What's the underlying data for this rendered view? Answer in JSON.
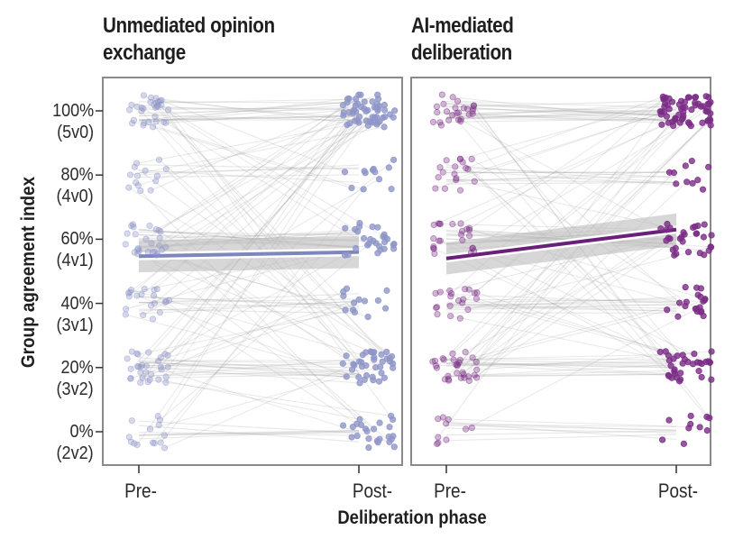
{
  "chart_data": [
    {
      "type": "line",
      "subtype": "paired-slope-with-jittered-points",
      "title": "Unmediated opinion exchange",
      "xlabel": "Deliberation phase",
      "ylabel": "Group agreement index",
      "x_categories": [
        "Pre-",
        "Post-"
      ],
      "y_ticks": [
        {
          "value": 100,
          "label": "100%\n(5v0)"
        },
        {
          "value": 80,
          "label": "80%\n(4v0)"
        },
        {
          "value": 60,
          "label": "60%\n(4v1)"
        },
        {
          "value": 40,
          "label": "40%\n(3v1)"
        },
        {
          "value": 20,
          "label": "20%\n(3v2)"
        },
        {
          "value": 0,
          "label": "0%\n(2v2)"
        }
      ],
      "ylim": [
        -10,
        110
      ],
      "grid": false,
      "point_color": "#8e96c8",
      "regression_color": "#7d86bd",
      "ci_color": "#bdbdbd",
      "regression": {
        "pre": 54.7,
        "post": 56.0,
        "ci_halfwidth": 5
      },
      "approx_point_counts": {
        "pre": {
          "100": 30,
          "80": 14,
          "60": 26,
          "40": 20,
          "20": 30,
          "0": 14
        },
        "post": {
          "100": 55,
          "80": 12,
          "60": 28,
          "40": 13,
          "20": 38,
          "0": 24
        }
      }
    },
    {
      "type": "line",
      "subtype": "paired-slope-with-jittered-points",
      "title": "AI-mediated deliberation",
      "xlabel": "Deliberation phase",
      "ylabel": "Group agreement index",
      "x_categories": [
        "Pre-",
        "Post-"
      ],
      "y_ticks": [
        {
          "value": 100,
          "label": "100%\n(5v0)"
        },
        {
          "value": 80,
          "label": "80%\n(4v0)"
        },
        {
          "value": 60,
          "label": "60%\n(4v1)"
        },
        {
          "value": 40,
          "label": "40%\n(3v1)"
        },
        {
          "value": 20,
          "label": "20%\n(3v2)"
        },
        {
          "value": 0,
          "label": "0%\n(2v2)"
        }
      ],
      "ylim": [
        -10,
        110
      ],
      "grid": false,
      "point_color": "#7b2d86",
      "regression_color": "#6a1f78",
      "ci_color": "#bdbdbd",
      "regression": {
        "pre": 54.0,
        "post": 63.0,
        "ci_halfwidth": 5
      },
      "approx_point_counts": {
        "pre": {
          "100": 26,
          "80": 18,
          "60": 24,
          "40": 20,
          "20": 30,
          "0": 10
        },
        "post": {
          "100": 62,
          "80": 10,
          "60": 30,
          "40": 20,
          "20": 34,
          "0": 10
        }
      }
    }
  ],
  "labels": {
    "title_left": "Unmediated opinion\nexchange",
    "title_right": "AI-mediated\ndeliberation",
    "y_axis": "Group agreement index",
    "x_axis": "Deliberation phase",
    "x_pre": "Pre-",
    "x_post": "Post-",
    "y_ticks": [
      "100%\n(5v0)",
      "80%\n(4v0)",
      "60%\n(4v1)",
      "40%\n(3v1)",
      "20%\n(3v2)",
      "0%\n(2v2)"
    ]
  }
}
